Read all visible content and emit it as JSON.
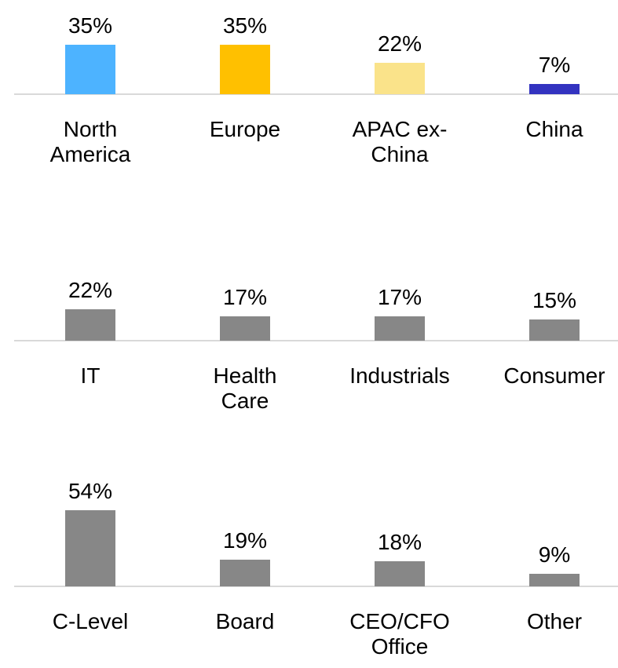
{
  "chart_data": [
    {
      "type": "bar",
      "categories": [
        "North America",
        "Europe",
        "APAC ex-China",
        "China"
      ],
      "values": [
        35,
        35,
        22,
        7
      ],
      "value_labels": [
        "35%",
        "35%",
        "22%",
        "7%"
      ],
      "colors": [
        "#4db3ff",
        "#ffc000",
        "#fae38a",
        "#3333c0"
      ]
    },
    {
      "type": "bar",
      "categories": [
        "IT",
        "Health Care",
        "Industrials",
        "Consumer"
      ],
      "values": [
        22,
        17,
        17,
        15
      ],
      "value_labels": [
        "22%",
        "17%",
        "17%",
        "15%"
      ],
      "color": "#878787"
    },
    {
      "type": "bar",
      "categories": [
        "C-Level",
        "Board",
        "CEO/CFO Office",
        "Other"
      ],
      "values": [
        54,
        19,
        18,
        9
      ],
      "value_labels": [
        "54%",
        "19%",
        "18%",
        "9%"
      ],
      "color": "#878787"
    }
  ]
}
